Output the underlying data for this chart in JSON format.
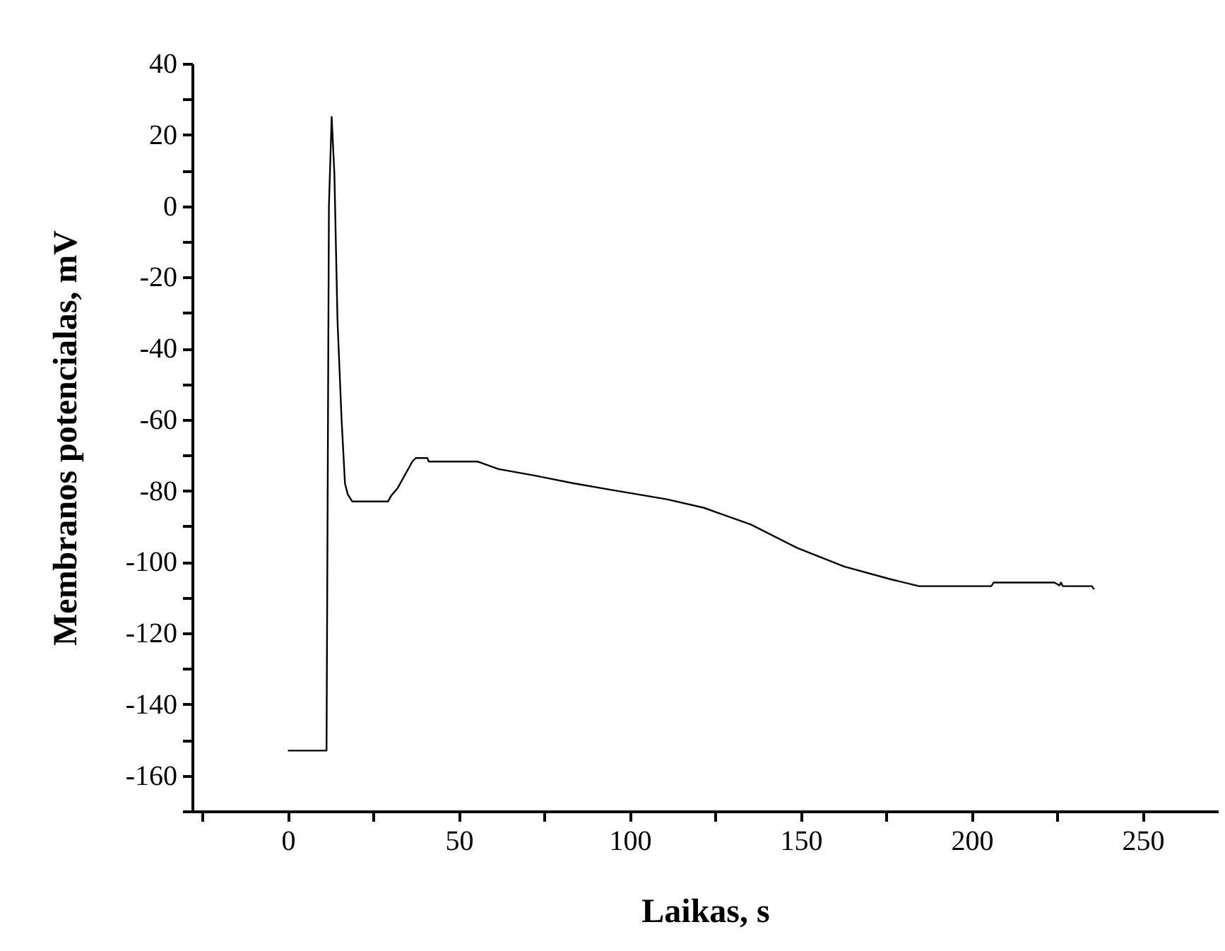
{
  "chart_data": {
    "type": "line",
    "xlabel": "Laikas, s",
    "ylabel": "Membranos potencialas, mV",
    "x": [
      0,
      11.0,
      11.3,
      12.0,
      12.8,
      13.6,
      14.5,
      15.7,
      16.7,
      17.5,
      18.8,
      29.3,
      30.2,
      32.0,
      36.4,
      37.4,
      40.8,
      41.2,
      55.4,
      56.1,
      61.6,
      72.5,
      83.5,
      94.3,
      110.8,
      121.7,
      135.4,
      149.0,
      162.7,
      176.4,
      184.6,
      205.7,
      206.4,
      224.2,
      225.6,
      226.1,
      226.6,
      235.1,
      235.8
    ],
    "series": [
      {
        "color": "#000000",
        "values": [
          -153,
          -153,
          -153,
          0,
          25,
          9,
          -32,
          -60,
          -78,
          -81,
          -83,
          -83,
          -81.4,
          -79.4,
          -71.8,
          -70.8,
          -70.8,
          -71.8,
          -71.8,
          -72,
          -73.9,
          -75.8,
          -77.9,
          -79.7,
          -82.4,
          -84.8,
          -89.5,
          -96.1,
          -101.3,
          -104.9,
          -106.8,
          -106.8,
          -105.8,
          -105.8,
          -106.6,
          -105.8,
          -106.8,
          -106.8,
          -107.7
        ]
      }
    ],
    "xlim": [
      -28,
      272
    ],
    "ylim": [
      -170,
      40
    ],
    "xticks": [
      {
        "value": -25,
        "label": null
      },
      0,
      {
        "value": 25,
        "label": null
      },
      50,
      {
        "value": 75,
        "label": null
      },
      100,
      {
        "value": 125,
        "label": null
      },
      150,
      {
        "value": 175,
        "label": null
      },
      200,
      {
        "value": 225,
        "label": null
      },
      250
    ],
    "yticks": [
      {
        "value": -170,
        "label": null
      },
      -160,
      {
        "value": -150,
        "label": null
      },
      -140,
      {
        "value": -130,
        "label": null
      },
      -120,
      {
        "value": -110,
        "label": null
      },
      -100,
      {
        "value": -90,
        "label": null
      },
      -80,
      {
        "value": -70,
        "label": null
      },
      -60,
      {
        "value": -50,
        "label": null
      },
      -40,
      {
        "value": -30,
        "label": null
      },
      -20,
      {
        "value": -10,
        "label": null
      },
      0,
      {
        "value": 10,
        "label": null
      },
      20,
      {
        "value": 30,
        "label": null
      },
      40
    ],
    "grid": false,
    "marker": "none",
    "line_style": "solid"
  }
}
